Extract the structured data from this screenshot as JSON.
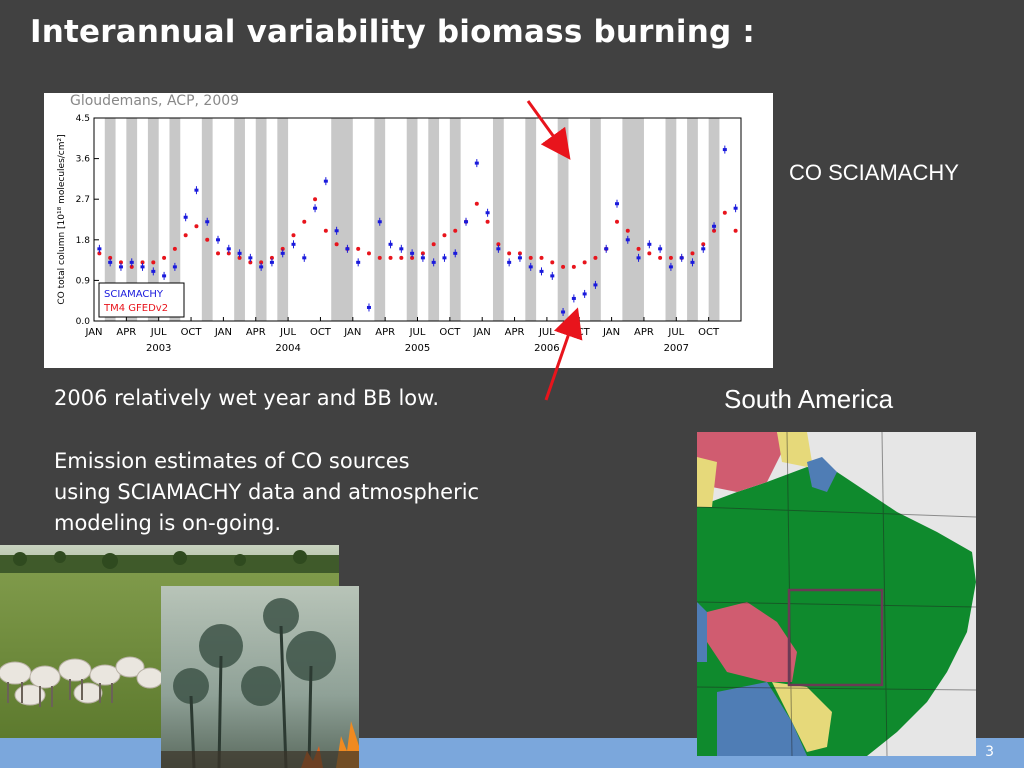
{
  "slide": {
    "title": "Interannual variability biomass burning :",
    "credit": "Gloudemans, ACP, 2009",
    "sciamachy_label": "CO SCIAMACHY",
    "region_label": "South America",
    "note1": "2006 relatively wet year and BB low.",
    "note2_lines": [
      "Emission estimates of CO sources",
      "using SCIAMACHY data and atmospheric",
      "modeling is on-going."
    ],
    "page_number": "3",
    "colors": {
      "background": "#414141",
      "footer": "#7ba7dc",
      "arrow": "#e8141c",
      "sciamachy_series": "#1a1adc",
      "model_series": "#e8141c",
      "data_gap_band": "#c8c8c8"
    },
    "photos": [
      "cattle-pasture-photo",
      "forest-fire-photo"
    ],
    "map": {
      "name": "south-america-map",
      "colors": {
        "brazil": "#0f8a2d",
        "pink_regions": "#d05c70",
        "yellow_regions": "#e6d97a",
        "blue_regions": "#4f7db5",
        "ocean": "#e6e6e6"
      }
    }
  },
  "chart_data": {
    "type": "scatter",
    "ylabel": "CO total column [10¹⁸ molecules/cm²]",
    "xlabel": "",
    "ylim": [
      0,
      4.5
    ],
    "yticks": [
      "0.0",
      "0.9",
      "1.8",
      "2.7",
      "3.6",
      "4.5"
    ],
    "month_ticks": [
      "JAN",
      "APR",
      "JUL",
      "OCT",
      "JAN",
      "APR",
      "JUL",
      "OCT",
      "JAN",
      "APR",
      "JUL",
      "OCT",
      "JAN",
      "APR",
      "JUL",
      "OCT",
      "JAN",
      "APR",
      "JUL",
      "OCT"
    ],
    "year_labels": [
      "2003",
      "2004",
      "2005",
      "2006",
      "2007"
    ],
    "legend": [
      "SCIAMACHY",
      "TM4 GFEDv2"
    ],
    "legend_position": "bottom-left",
    "grid": false,
    "x_range_months": [
      0,
      60
    ],
    "series": [
      {
        "name": "SCIAMACHY",
        "x": [
          0.5,
          1.5,
          2.5,
          3.5,
          4.5,
          5.5,
          6.5,
          7.5,
          8.5,
          9.5,
          10.5,
          11.5,
          12.5,
          13.5,
          14.5,
          15.5,
          16.5,
          17.5,
          18.5,
          19.5,
          20.5,
          21.5,
          22.5,
          23.5,
          24.5,
          25.5,
          26.5,
          27.5,
          28.5,
          29.5,
          30.5,
          31.5,
          32.5,
          33.5,
          34.5,
          35.5,
          36.5,
          37.5,
          38.5,
          39.5,
          40.5,
          41.5,
          42.5,
          43.5,
          44.5,
          45.5,
          46.5,
          47.5,
          48.5,
          49.5,
          50.5,
          51.5,
          52.5,
          53.5,
          54.5,
          55.5,
          56.5,
          57.5,
          58.5,
          59.5
        ],
        "values": [
          1.6,
          1.3,
          1.2,
          1.3,
          1.2,
          1.1,
          1.0,
          1.2,
          2.3,
          2.9,
          2.2,
          1.8,
          1.6,
          1.5,
          1.4,
          1.2,
          1.3,
          1.5,
          1.7,
          1.4,
          2.5,
          3.1,
          2.0,
          1.6,
          1.3,
          0.3,
          2.2,
          1.7,
          1.6,
          1.5,
          1.4,
          1.3,
          1.4,
          1.5,
          2.2,
          3.5,
          2.4,
          1.6,
          1.3,
          1.4,
          1.2,
          1.1,
          1.0,
          0.2,
          0.5,
          0.6,
          0.8,
          1.6,
          2.6,
          1.8,
          1.4,
          1.7,
          1.6,
          1.2,
          1.4,
          1.3,
          1.6,
          2.1,
          3.8,
          2.5
        ]
      },
      {
        "name": "TM4 GFEDv2",
        "x": [
          0.5,
          1.5,
          2.5,
          3.5,
          4.5,
          5.5,
          6.5,
          7.5,
          8.5,
          9.5,
          10.5,
          11.5,
          12.5,
          13.5,
          14.5,
          15.5,
          16.5,
          17.5,
          18.5,
          19.5,
          20.5,
          21.5,
          22.5,
          23.5,
          24.5,
          25.5,
          26.5,
          27.5,
          28.5,
          29.5,
          30.5,
          31.5,
          32.5,
          33.5,
          34.5,
          35.5,
          36.5,
          37.5,
          38.5,
          39.5,
          40.5,
          41.5,
          42.5,
          43.5,
          44.5,
          45.5,
          46.5,
          47.5,
          48.5,
          49.5,
          50.5,
          51.5,
          52.5,
          53.5,
          54.5,
          55.5,
          56.5,
          57.5,
          58.5,
          59.5
        ],
        "values": [
          1.5,
          1.4,
          1.3,
          1.2,
          1.3,
          1.3,
          1.4,
          1.6,
          1.9,
          2.1,
          1.8,
          1.5,
          1.5,
          1.4,
          1.3,
          1.3,
          1.4,
          1.6,
          1.9,
          2.2,
          2.7,
          2.0,
          1.7,
          1.6,
          1.6,
          1.5,
          1.4,
          1.4,
          1.4,
          1.4,
          1.5,
          1.7,
          1.9,
          2.0,
          2.2,
          2.6,
          2.2,
          1.7,
          1.5,
          1.5,
          1.4,
          1.4,
          1.3,
          1.2,
          1.2,
          1.3,
          1.4,
          1.6,
          2.2,
          2.0,
          1.6,
          1.5,
          1.4,
          1.4,
          1.4,
          1.5,
          1.7,
          2.0,
          2.4,
          2.0
        ]
      }
    ],
    "data_gap_bands": [
      [
        1,
        2
      ],
      [
        3,
        4
      ],
      [
        5,
        6
      ],
      [
        7,
        8
      ],
      [
        10,
        11
      ],
      [
        13,
        14
      ],
      [
        15,
        16
      ],
      [
        17,
        18
      ],
      [
        22,
        24
      ],
      [
        26,
        27
      ],
      [
        29,
        30
      ],
      [
        31,
        32
      ],
      [
        33,
        34
      ],
      [
        37,
        38
      ],
      [
        40,
        41
      ],
      [
        43,
        44
      ],
      [
        46,
        47
      ],
      [
        49,
        51
      ],
      [
        53,
        54
      ],
      [
        55,
        56
      ],
      [
        57,
        58
      ]
    ]
  }
}
